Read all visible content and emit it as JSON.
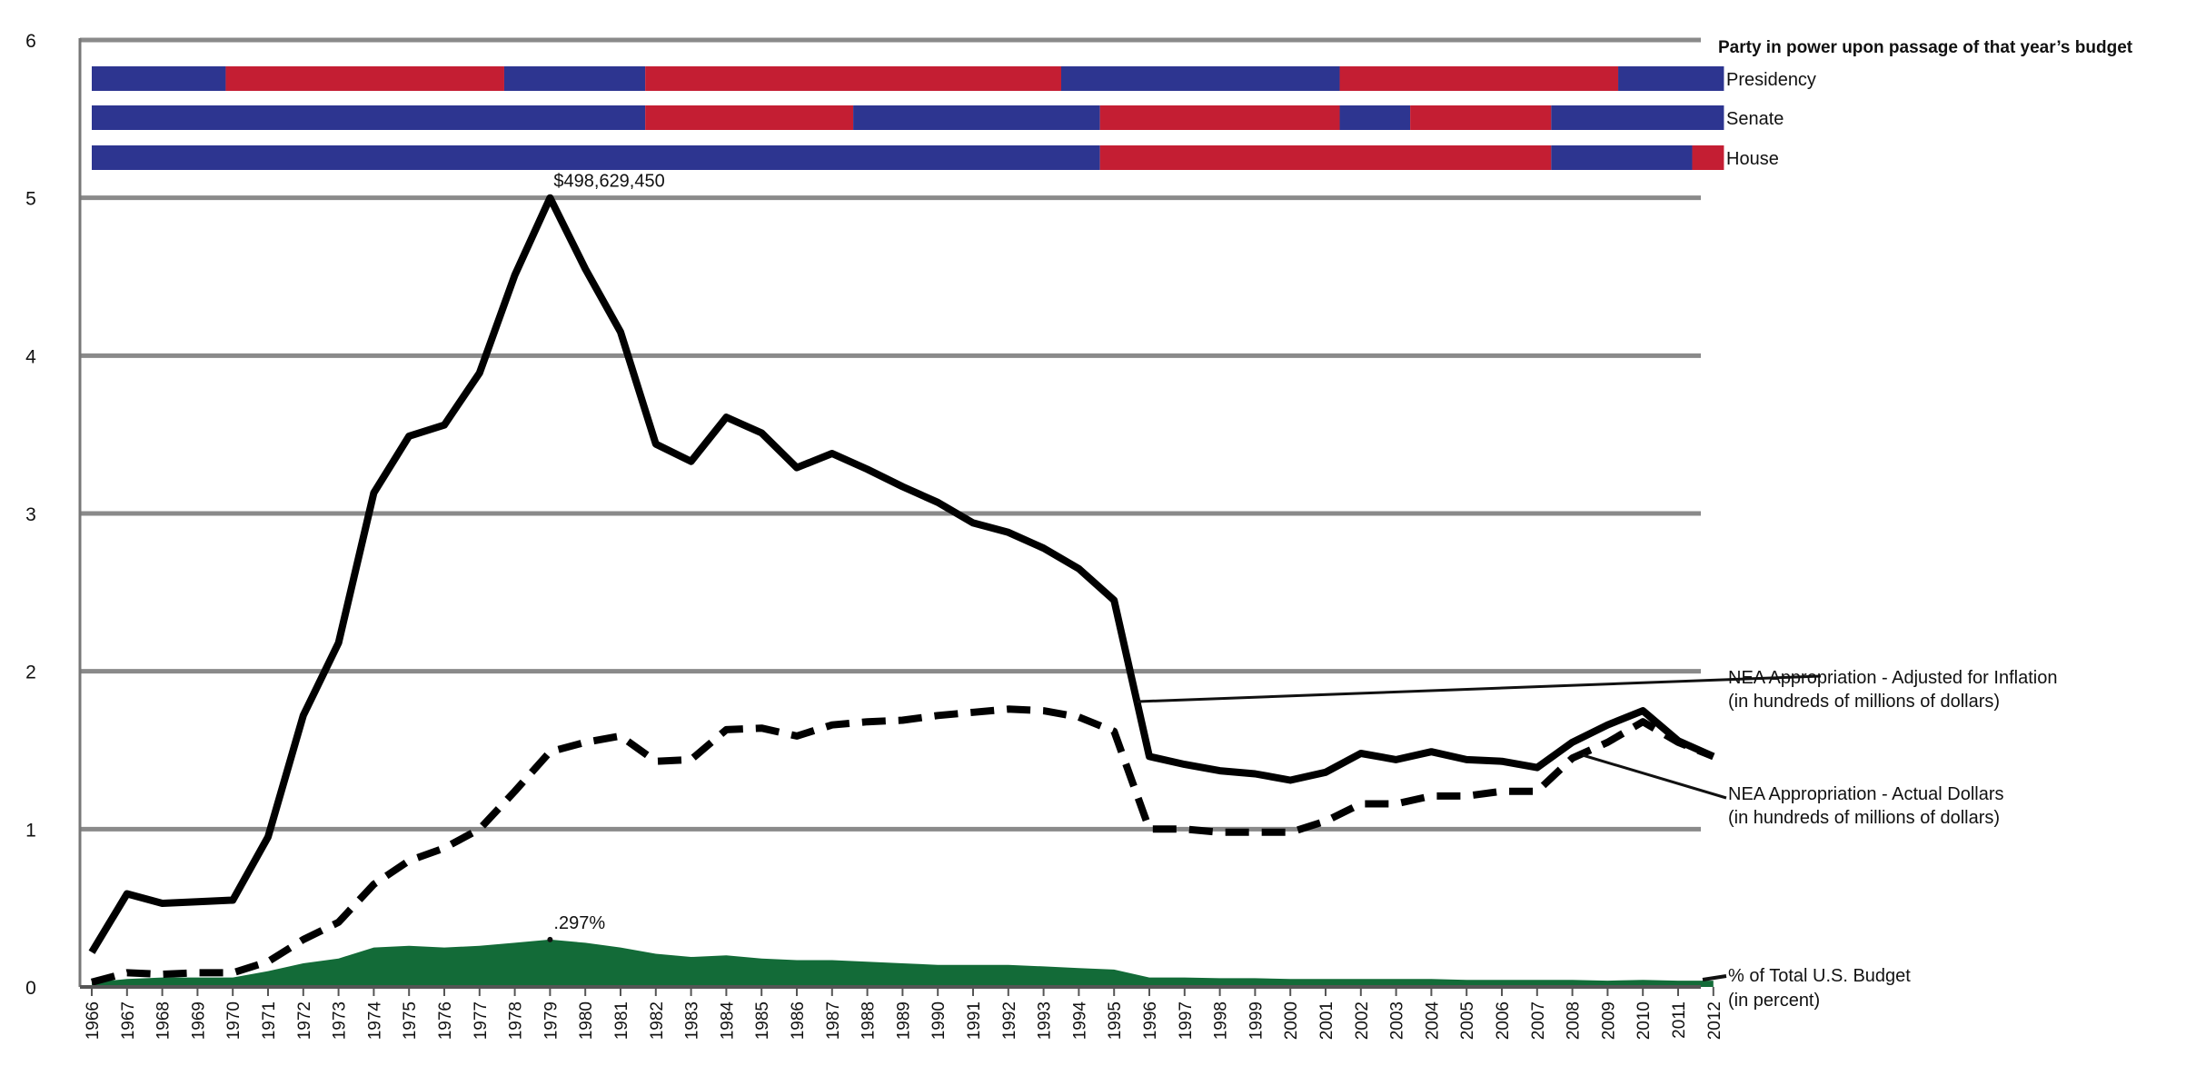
{
  "chart_data": {
    "type": "line",
    "x": [
      "1966",
      "1967",
      "1968",
      "1969",
      "1970",
      "1971",
      "1972",
      "1973",
      "1974",
      "1975",
      "1976",
      "1977",
      "1978",
      "1979",
      "1980",
      "1981",
      "1982",
      "1983",
      "1984",
      "1985",
      "1986",
      "1987",
      "1988",
      "1989",
      "1990",
      "1991",
      "1992",
      "1993",
      "1994",
      "1995",
      "1996",
      "1997",
      "1998",
      "1999",
      "2000",
      "2001",
      "2002",
      "2003",
      "2004",
      "2005",
      "2006",
      "2007",
      "2008",
      "2009",
      "2010",
      "2011",
      "2012"
    ],
    "ylim": [
      0,
      6
    ],
    "yticks": [
      "0",
      "1",
      "2",
      "3",
      "4",
      "5",
      "6"
    ],
    "grid": true,
    "series": [
      {
        "name": "NEA Appropriation - Adjusted for Inflation",
        "name_line2": "(in hundreds of millions of dollars)",
        "style": "solid",
        "color": "#000000",
        "values": [
          0.22,
          0.59,
          0.53,
          0.54,
          0.55,
          0.95,
          1.72,
          2.18,
          3.13,
          3.49,
          3.56,
          3.89,
          4.51,
          5.0,
          4.55,
          4.15,
          3.44,
          3.33,
          3.61,
          3.51,
          3.29,
          3.38,
          3.28,
          3.17,
          3.07,
          2.94,
          2.88,
          2.78,
          2.65,
          2.45,
          1.46,
          1.41,
          1.37,
          1.35,
          1.31,
          1.36,
          1.48,
          1.44,
          1.49,
          1.44,
          1.43,
          1.39,
          1.55,
          1.66,
          1.75,
          1.56,
          1.46
        ]
      },
      {
        "name": "NEA Appropriation - Actual Dollars",
        "name_line2": "(in hundreds of millions of dollars)",
        "style": "dashed",
        "color": "#000000",
        "values": [
          0.03,
          0.09,
          0.08,
          0.09,
          0.09,
          0.16,
          0.3,
          0.41,
          0.65,
          0.8,
          0.88,
          1.0,
          1.24,
          1.49,
          1.55,
          1.59,
          1.43,
          1.44,
          1.63,
          1.64,
          1.59,
          1.66,
          1.68,
          1.69,
          1.72,
          1.74,
          1.76,
          1.75,
          1.71,
          1.62,
          1.0,
          1.0,
          0.98,
          0.98,
          0.98,
          1.05,
          1.16,
          1.16,
          1.21,
          1.21,
          1.24,
          1.24,
          1.45,
          1.55,
          1.68,
          1.55,
          1.46
        ]
      },
      {
        "name": "% of Total U.S. Budget",
        "name_line2": "(in percent)",
        "style": "area",
        "color": "#136b38",
        "values": [
          0.03,
          0.05,
          0.06,
          0.06,
          0.06,
          0.1,
          0.15,
          0.18,
          0.25,
          0.26,
          0.25,
          0.26,
          0.28,
          0.3,
          0.28,
          0.25,
          0.21,
          0.19,
          0.2,
          0.18,
          0.17,
          0.17,
          0.16,
          0.15,
          0.14,
          0.14,
          0.14,
          0.13,
          0.12,
          0.11,
          0.06,
          0.06,
          0.055,
          0.055,
          0.05,
          0.05,
          0.05,
          0.05,
          0.05,
          0.045,
          0.045,
          0.045,
          0.045,
          0.04,
          0.045,
          0.04,
          0.04
        ]
      }
    ],
    "annotations": [
      {
        "text": "$498,629,450",
        "series": 0,
        "x": "1979"
      },
      {
        "text": ".297%",
        "series": 2,
        "x": "1979"
      }
    ],
    "party_bars": {
      "title": "Party in power upon passage of that year’s budget",
      "colors": {
        "D": "#2d3590",
        "R": "#c41e33"
      },
      "rows": [
        {
          "label": "Presidency",
          "segments": [
            {
              "party": "D",
              "from": 1966,
              "to": 1969.8
            },
            {
              "party": "R",
              "from": 1969.8,
              "to": 1977.7
            },
            {
              "party": "D",
              "from": 1977.7,
              "to": 1981.7
            },
            {
              "party": "R",
              "from": 1981.7,
              "to": 1993.5
            },
            {
              "party": "D",
              "from": 1993.5,
              "to": 2001.4
            },
            {
              "party": "R",
              "from": 2001.4,
              "to": 2009.3
            },
            {
              "party": "D",
              "from": 2009.3,
              "to": 2012.3
            }
          ]
        },
        {
          "label": "Senate",
          "segments": [
            {
              "party": "D",
              "from": 1966,
              "to": 1981.7
            },
            {
              "party": "R",
              "from": 1981.7,
              "to": 1987.6
            },
            {
              "party": "D",
              "from": 1987.6,
              "to": 1994.6
            },
            {
              "party": "R",
              "from": 1994.6,
              "to": 2001.4
            },
            {
              "party": "D",
              "from": 2001.4,
              "to": 2003.4
            },
            {
              "party": "R",
              "from": 2003.4,
              "to": 2007.4
            },
            {
              "party": "D",
              "from": 2007.4,
              "to": 2012.3
            }
          ]
        },
        {
          "label": "House",
          "segments": [
            {
              "party": "D",
              "from": 1966,
              "to": 1994.6
            },
            {
              "party": "R",
              "from": 1994.6,
              "to": 2007.4
            },
            {
              "party": "D",
              "from": 2007.4,
              "to": 2011.4
            },
            {
              "party": "R",
              "from": 2011.4,
              "to": 2012.3
            }
          ]
        }
      ]
    }
  }
}
